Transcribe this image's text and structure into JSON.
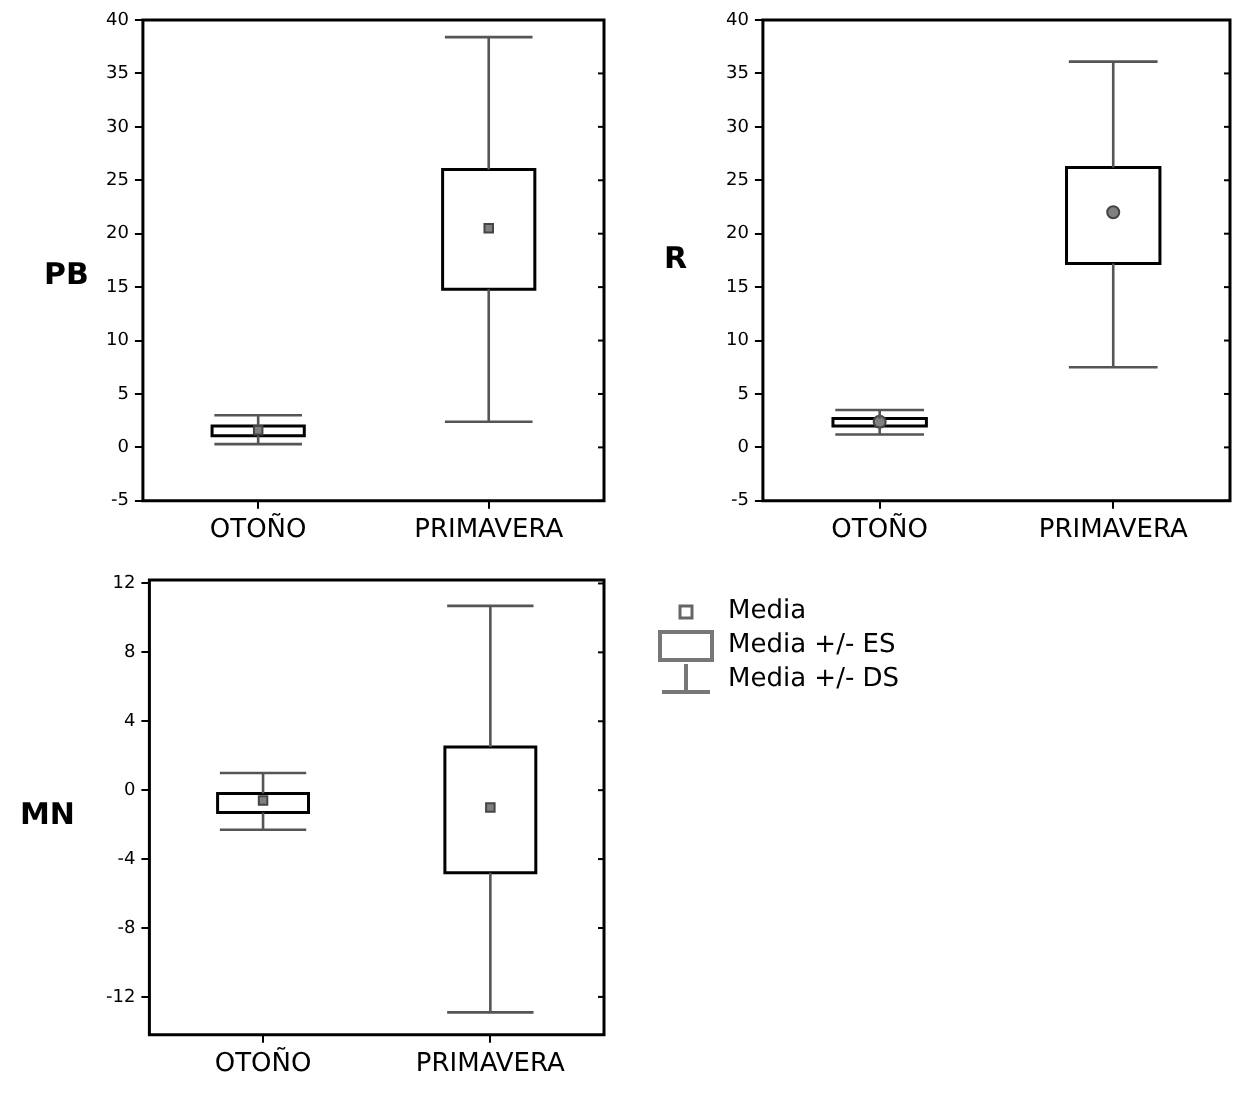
{
  "chart_data": [
    {
      "type": "box",
      "ylabel": "PB",
      "categories": [
        "OTOÑO",
        "PRIMAVERA"
      ],
      "ylim": [
        -5,
        40
      ],
      "yticks": [
        -5,
        0,
        5,
        10,
        15,
        20,
        25,
        30,
        35,
        40
      ],
      "color": "#000000",
      "marker": "square",
      "boxes": [
        {
          "low": 0.3,
          "q1": 1.1,
          "mean": 1.6,
          "q3": 2.0,
          "high": 3.0
        },
        {
          "low": 2.4,
          "q1": 14.8,
          "mean": 20.5,
          "q3": 26.0,
          "high": 38.4
        }
      ]
    },
    {
      "type": "box",
      "ylabel": "R",
      "categories": [
        "OTOÑO",
        "PRIMAVERA"
      ],
      "ylim": [
        -5,
        40
      ],
      "yticks": [
        -5,
        0,
        5,
        10,
        15,
        20,
        25,
        30,
        35,
        40
      ],
      "color": "#000000",
      "marker": "circle",
      "boxes": [
        {
          "low": 1.2,
          "q1": 2.0,
          "mean": 2.4,
          "q3": 2.7,
          "high": 3.5
        },
        {
          "low": 7.5,
          "q1": 17.2,
          "mean": 22.0,
          "q3": 26.2,
          "high": 36.1
        }
      ]
    },
    {
      "type": "box",
      "ylabel": "MN",
      "categories": [
        "OTOÑO",
        "PRIMAVERA"
      ],
      "ylim": [
        -14.2,
        12.2
      ],
      "yticks": [
        -12,
        -8,
        -4,
        0,
        4,
        8,
        12
      ],
      "color": "#000000",
      "marker": "square",
      "boxes": [
        {
          "low": -2.3,
          "q1": -1.3,
          "mean": -0.6,
          "q3": -0.2,
          "high": 1.0
        },
        {
          "low": -12.9,
          "q1": -4.8,
          "mean": -1.0,
          "q3": 2.5,
          "high": 10.7
        }
      ],
      "annotations": [
        "Media",
        "Media +/- ES",
        "Media +/- DS"
      ]
    }
  ]
}
